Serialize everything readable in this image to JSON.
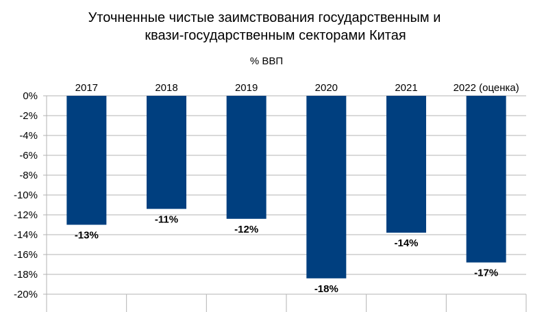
{
  "chart_data": {
    "type": "bar",
    "title_line1": "Уточненные чистые заимствования государственным и",
    "title_line2": "квази-государственным секторами Китая",
    "subtitle": "% ВВП",
    "categories": [
      "2017",
      "2018",
      "2019",
      "2020",
      "2021",
      "2022 (оценка)"
    ],
    "values": [
      -13,
      -11.4,
      -12.4,
      -18.4,
      -13.8,
      -16.8
    ],
    "data_labels": [
      "-13%",
      "-11%",
      "-12%",
      "-18%",
      "-14%",
      "-17%"
    ],
    "ylim": [
      -20,
      0
    ],
    "y_ticks": [
      0,
      -2,
      -4,
      -6,
      -8,
      -10,
      -12,
      -14,
      -16,
      -18,
      -20
    ],
    "y_tick_labels": [
      "0%",
      "-2%",
      "-4%",
      "-6%",
      "-8%",
      "-10%",
      "-12%",
      "-14%",
      "-16%",
      "-18%",
      "-20%"
    ],
    "xlabel": "",
    "ylabel": "",
    "grid": true,
    "legend": "none",
    "category_axis_position": "top",
    "bar_color": "#003F7F",
    "grid_color": "#B3B3B3"
  }
}
